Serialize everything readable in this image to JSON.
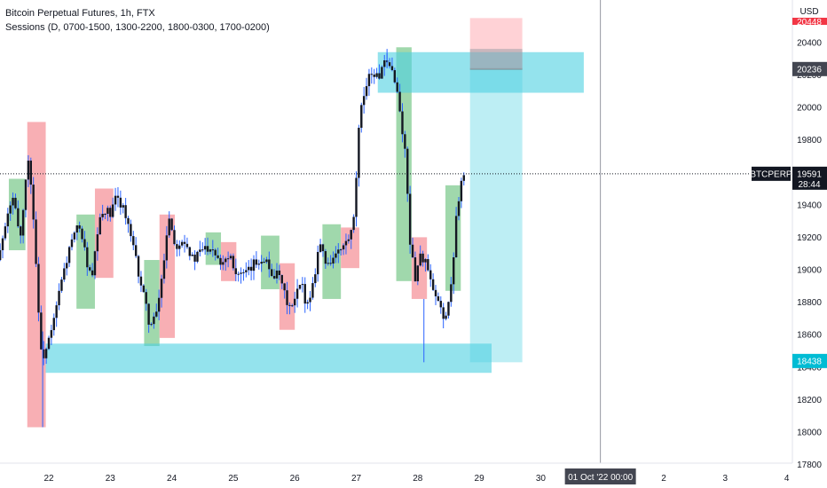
{
  "legend": {
    "title": "Bitcoin Perpetual Futures, 1h, FTX",
    "indicator": "Sessions (D, 0700-1500, 1300-2200, 1800-0300, 1700-0200)"
  },
  "price_axis": {
    "currency": "USD",
    "ticks": [
      17800,
      18000,
      18200,
      18400,
      18600,
      18800,
      19000,
      19200,
      19400,
      19600,
      19800,
      20000,
      20200,
      20400
    ],
    "labels": [
      "17800",
      "18000",
      "18200",
      "18400",
      "18600",
      "18800",
      "19000",
      "19200",
      "19400",
      "19600",
      "19800",
      "20000",
      "20200",
      "20400"
    ]
  },
  "time_axis": {
    "labels": [
      "22",
      "23",
      "24",
      "25",
      "26",
      "27",
      "28",
      "29",
      "30",
      "2",
      "3",
      "4"
    ],
    "cursor_label": "01 Oct '22   00:00"
  },
  "price_tags": {
    "symbol": "BTCPERP",
    "last_price": "19591",
    "countdown": "28:44",
    "zone_high": "20236",
    "zone_low": "18438",
    "top_partial": "20448"
  },
  "colors": {
    "up": "#131722",
    "down": "#131722",
    "wick_blue": "#2962ff",
    "session_red": "#f7a1a7",
    "session_green": "#8fd19e",
    "zone": "#4dd0e1",
    "stop": "#ffcdd2",
    "target": "#b2ebf2",
    "tag_dark": "#131722",
    "tag_grey": "#434651",
    "tag_cyan": "#00bcd4"
  },
  "chart_data": {
    "type": "candlestick",
    "title": "Bitcoin Perpetual Futures, 1h, FTX",
    "ylim": [
      17800,
      20500
    ],
    "x_days": [
      "22",
      "23",
      "24",
      "25",
      "26",
      "27",
      "28",
      "29",
      "30",
      "01 Oct '22",
      "2",
      "3",
      "4"
    ],
    "last_price": 19591,
    "zones": [
      {
        "kind": "supply",
        "top": 20340,
        "bottom": 20090,
        "from_day": 27.35,
        "to_day": 30.7
      },
      {
        "kind": "demand",
        "top": 18545,
        "bottom": 18365,
        "from_day": 21.95,
        "to_day": 29.2
      }
    ],
    "position": {
      "type": "long",
      "entry": 18438,
      "stop_top": 20550,
      "stop_bottom": 20236,
      "target_top": 20236,
      "target_bottom": 18430,
      "from_day": 28.85,
      "to_day": 29.7
    },
    "sessions": [
      {
        "color": "red",
        "from_day": 21.65,
        "to_day": 21.95,
        "top": 19910,
        "bottom": 18030
      },
      {
        "color": "green",
        "from_day": 21.35,
        "to_day": 21.62,
        "top": 19560,
        "bottom": 19120
      },
      {
        "color": "green",
        "from_day": 22.45,
        "to_day": 22.75,
        "top": 19340,
        "bottom": 18760
      },
      {
        "color": "red",
        "from_day": 22.75,
        "to_day": 23.05,
        "top": 19500,
        "bottom": 18950
      },
      {
        "color": "green",
        "from_day": 23.55,
        "to_day": 23.8,
        "top": 19060,
        "bottom": 18530
      },
      {
        "color": "red",
        "from_day": 23.8,
        "to_day": 24.05,
        "top": 19340,
        "bottom": 18580
      },
      {
        "color": "green",
        "from_day": 24.55,
        "to_day": 24.8,
        "top": 19230,
        "bottom": 19030
      },
      {
        "color": "red",
        "from_day": 24.8,
        "to_day": 25.05,
        "top": 19170,
        "bottom": 18930
      },
      {
        "color": "green",
        "from_day": 25.45,
        "to_day": 25.75,
        "top": 19210,
        "bottom": 18880
      },
      {
        "color": "red",
        "from_day": 25.75,
        "to_day": 26.0,
        "top": 19040,
        "bottom": 18630
      },
      {
        "color": "green",
        "from_day": 26.45,
        "to_day": 26.75,
        "top": 19280,
        "bottom": 18820
      },
      {
        "color": "red",
        "from_day": 26.75,
        "to_day": 27.05,
        "top": 19260,
        "bottom": 19010
      },
      {
        "color": "green",
        "from_day": 27.65,
        "to_day": 27.9,
        "top": 20370,
        "bottom": 18930
      },
      {
        "color": "red",
        "from_day": 27.9,
        "to_day": 28.15,
        "top": 19200,
        "bottom": 18820
      },
      {
        "color": "green",
        "from_day": 28.45,
        "to_day": 28.7,
        "top": 19520,
        "bottom": 18870
      }
    ],
    "price_path": [
      [
        21.0,
        18980
      ],
      [
        21.2,
        19100
      ],
      [
        21.4,
        19450
      ],
      [
        21.55,
        19200
      ],
      [
        21.65,
        19700
      ],
      [
        21.72,
        19520
      ],
      [
        21.8,
        18980
      ],
      [
        21.88,
        18450
      ],
      [
        21.95,
        18500
      ],
      [
        22.05,
        18620
      ],
      [
        22.2,
        18920
      ],
      [
        22.35,
        19150
      ],
      [
        22.5,
        19280
      ],
      [
        22.6,
        19080
      ],
      [
        22.7,
        18920
      ],
      [
        22.8,
        19250
      ],
      [
        22.9,
        19380
      ],
      [
        23.0,
        19330
      ],
      [
        23.1,
        19450
      ],
      [
        23.2,
        19400
      ],
      [
        23.3,
        19250
      ],
      [
        23.45,
        19000
      ],
      [
        23.55,
        18820
      ],
      [
        23.65,
        18650
      ],
      [
        23.75,
        18720
      ],
      [
        23.85,
        18980
      ],
      [
        23.95,
        19350
      ],
      [
        24.05,
        19150
      ],
      [
        24.2,
        19200
      ],
      [
        24.35,
        19050
      ],
      [
        24.5,
        19130
      ],
      [
        24.65,
        19150
      ],
      [
        24.8,
        19050
      ],
      [
        24.95,
        19100
      ],
      [
        25.05,
        18980
      ],
      [
        25.2,
        18960
      ],
      [
        25.35,
        19040
      ],
      [
        25.5,
        19080
      ],
      [
        25.6,
        18990
      ],
      [
        25.75,
        18950
      ],
      [
        25.85,
        18820
      ],
      [
        25.95,
        18750
      ],
      [
        26.1,
        18920
      ],
      [
        26.2,
        18780
      ],
      [
        26.3,
        18920
      ],
      [
        26.4,
        19180
      ],
      [
        26.5,
        19040
      ],
      [
        26.65,
        19080
      ],
      [
        26.8,
        19140
      ],
      [
        26.95,
        19240
      ],
      [
        27.05,
        19900
      ],
      [
        27.15,
        20150
      ],
      [
        27.25,
        20220
      ],
      [
        27.35,
        20180
      ],
      [
        27.45,
        20260
      ],
      [
        27.55,
        20240
      ],
      [
        27.62,
        20200
      ],
      [
        27.7,
        20000
      ],
      [
        27.8,
        19700
      ],
      [
        27.88,
        19150
      ],
      [
        27.95,
        18950
      ],
      [
        28.05,
        19100
      ],
      [
        28.15,
        19020
      ],
      [
        28.25,
        18850
      ],
      [
        28.35,
        18780
      ],
      [
        28.45,
        18700
      ],
      [
        28.55,
        18900
      ],
      [
        28.62,
        19320
      ],
      [
        28.7,
        19550
      ],
      [
        28.75,
        19590
      ]
    ]
  }
}
